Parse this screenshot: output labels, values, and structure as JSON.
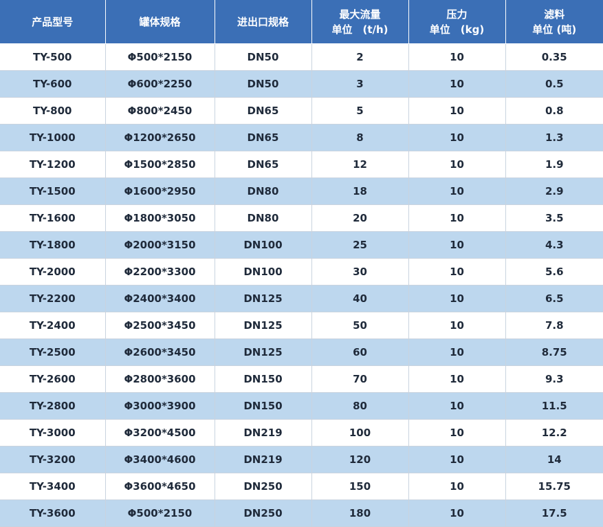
{
  "headers": [
    {
      "line1": "产品型号",
      "line2": ""
    },
    {
      "line1": "罐体规格",
      "line2": ""
    },
    {
      "line1": "进出口规格",
      "line2": ""
    },
    {
      "line1": "最大流量",
      "line2": "单位　(t/h)"
    },
    {
      "line1": "压力",
      "line2": "单位　(kg)"
    },
    {
      "line1": "滤料",
      "line2": "单位 (吨)"
    }
  ],
  "rows": [
    [
      "TY-500",
      "Φ500*2150",
      "DN50",
      "2",
      "10",
      "0.35"
    ],
    [
      "TY-600",
      "Φ600*2250",
      "DN50",
      "3",
      "10",
      "0.5"
    ],
    [
      "TY-800",
      "Φ800*2450",
      "DN65",
      "5",
      "10",
      "0.8"
    ],
    [
      "TY-1000",
      "Φ1200*2650",
      "DN65",
      "8",
      "10",
      "1.3"
    ],
    [
      "TY-1200",
      "Φ1500*2850",
      "DN65",
      "12",
      "10",
      "1.9"
    ],
    [
      "TY-1500",
      "Φ1600*2950",
      "DN80",
      "18",
      "10",
      "2.9"
    ],
    [
      "TY-1600",
      "Φ1800*3050",
      "DN80",
      "20",
      "10",
      "3.5"
    ],
    [
      "TY-1800",
      "Φ2000*3150",
      "DN100",
      "25",
      "10",
      "4.3"
    ],
    [
      "TY-2000",
      "Φ2200*3300",
      "DN100",
      "30",
      "10",
      "5.6"
    ],
    [
      "TY-2200",
      "Φ2400*3400",
      "DN125",
      "40",
      "10",
      "6.5"
    ],
    [
      "TY-2400",
      "Φ2500*3450",
      "DN125",
      "50",
      "10",
      "7.8"
    ],
    [
      "TY-2500",
      "Φ2600*3450",
      "DN125",
      "60",
      "10",
      "8.75"
    ],
    [
      "TY-2600",
      "Φ2800*3600",
      "DN150",
      "70",
      "10",
      "9.3"
    ],
    [
      "TY-2800",
      "Φ3000*3900",
      "DN150",
      "80",
      "10",
      "11.5"
    ],
    [
      "TY-3000",
      "Φ3200*4500",
      "DN219",
      "100",
      "10",
      "12.2"
    ],
    [
      "TY-3200",
      "Φ3400*4600",
      "DN219",
      "120",
      "10",
      "14"
    ],
    [
      "TY-3400",
      "Φ3600*4650",
      "DN250",
      "150",
      "10",
      "15.75"
    ],
    [
      "TY-3600",
      "Φ500*2150",
      "DN250",
      "180",
      "10",
      "17.5"
    ]
  ],
  "colors": {
    "header_bg": "#3b6fb6",
    "header_text": "#ffffff",
    "row_odd_bg": "#ffffff",
    "row_even_bg": "#bdd7ee",
    "cell_text": "#1f2a3a"
  }
}
